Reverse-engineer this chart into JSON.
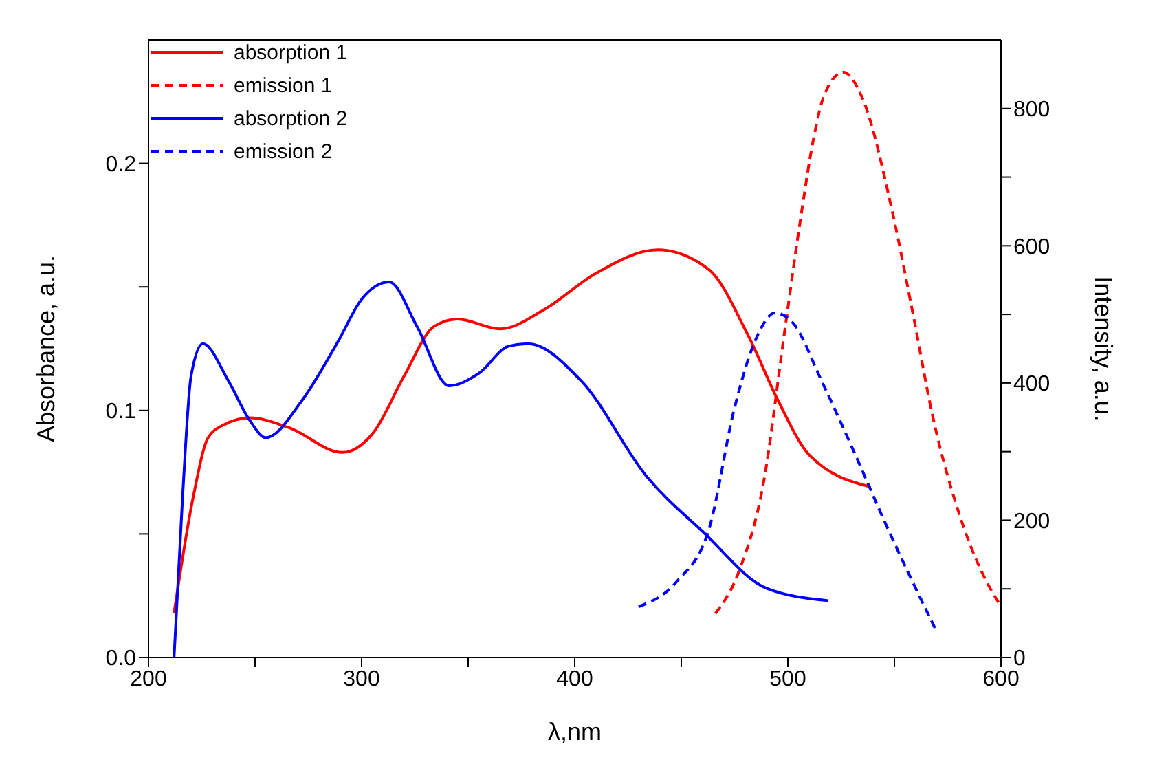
{
  "chart_data": {
    "type": "line",
    "xlabel": "λ,nm",
    "ylabel": "Absorbance, a.u.",
    "y2label": "Intensity, a.u.",
    "xlim": [
      200,
      600
    ],
    "xticks": [
      200,
      {
        "value": 250,
        "label": null
      },
      300,
      {
        "value": 350,
        "label": null
      },
      400,
      {
        "value": 450,
        "label": null
      },
      500,
      {
        "value": 550,
        "label": null
      },
      600
    ],
    "ylim": [
      0,
      0.25
    ],
    "yticks": [
      {
        "value": 0,
        "label": "0.0"
      },
      {
        "value": 0.05,
        "label": null
      },
      {
        "value": 0.1,
        "label": "0.1"
      },
      {
        "value": 0.15,
        "label": null
      },
      {
        "value": 0.2,
        "label": "0.2"
      }
    ],
    "y2lim": [
      0,
      900
    ],
    "y2ticks": [
      0,
      {
        "value": 100,
        "label": null
      },
      200,
      {
        "value": 300,
        "label": null
      },
      400,
      {
        "value": 500,
        "label": null
      },
      600,
      {
        "value": 700,
        "label": null
      },
      800
    ],
    "legend": "top left",
    "marker": "none",
    "series": [
      {
        "name": "absorption 1",
        "color": "#ff0000",
        "line_style": "solid",
        "x": [
          212,
          221,
          228,
          235,
          247.5,
          266,
          291,
          305.5,
          320,
          334,
          345,
          365,
          386,
          409,
          439,
          463,
          481,
          496,
          510,
          539
        ],
        "values": [
          0.018,
          0.065,
          0.089,
          0.094,
          0.097,
          0.093,
          0.083,
          0.091,
          0.114,
          0.134,
          0.137,
          0.133,
          0.141,
          0.155,
          0.165,
          0.157,
          0.131,
          0.103,
          0.082,
          0.069
        ]
      },
      {
        "name": "emission 1",
        "color": "#ff0000",
        "line_style": "dashed",
        "axis": "y2",
        "x": [
          466,
          477,
          489,
          498,
          506,
          512,
          517,
          526,
          535,
          549,
          559,
          568,
          580,
          597.5,
          600
        ],
        "values": [
          64,
          125,
          262,
          464,
          640,
          755,
          819,
          853,
          815,
          650,
          496,
          351,
          213,
          87,
          75
        ]
      },
      {
        "name": "absorption 2",
        "color": "#0000ff",
        "line_style": "solid",
        "x": [
          212,
          216,
          220,
          225.5,
          237.5,
          247.5,
          255,
          272,
          289,
          300,
          313,
          326,
          341,
          355,
          369,
          378,
          403,
          434,
          460,
          490,
          519
        ],
        "values": [
          0,
          0.065,
          0.114,
          0.127,
          0.112,
          0.096,
          0.089,
          0.104,
          0.128,
          0.145,
          0.152,
          0.134,
          0.11,
          0.115,
          0.126,
          0.127,
          0.112,
          0.073,
          0.051,
          0.028,
          0.023
        ]
      },
      {
        "name": "emission 2",
        "color": "#0000ff",
        "line_style": "dashed",
        "axis": "y2",
        "x": [
          430,
          448,
          463,
          475,
          485,
          494,
          502,
          516,
          531,
          547,
          569
        ],
        "values": [
          74,
          111,
          187,
          364,
          464,
          502,
          489,
          402,
          300,
          187,
          43
        ]
      }
    ]
  }
}
